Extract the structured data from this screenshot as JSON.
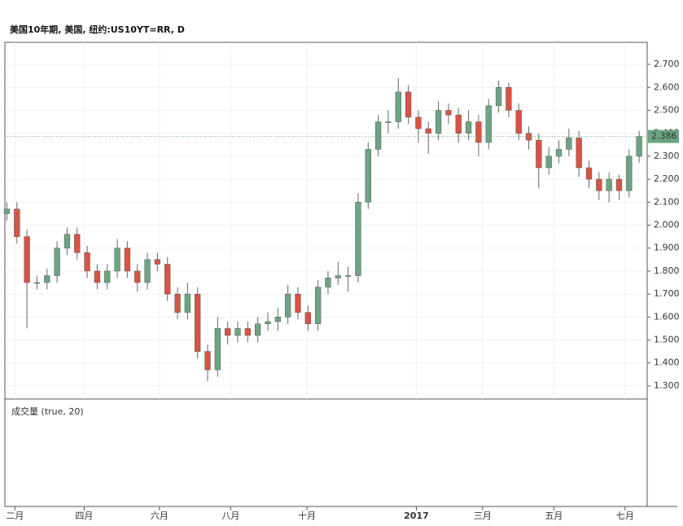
{
  "chart_data": {
    "type": "candlestick",
    "title": "美国10年期, 美国, 纽约:US10YT=RR, D",
    "volume_title": "成交量 (true, 20)",
    "x": [
      0,
      1,
      2,
      3,
      4,
      5,
      6,
      7,
      8,
      9,
      10,
      11,
      12,
      13,
      14,
      15,
      16,
      17,
      18,
      19,
      20,
      21,
      22,
      23,
      24,
      25,
      26,
      27,
      28,
      29,
      30,
      31,
      32,
      33,
      34,
      35,
      36,
      37,
      38,
      39,
      40,
      41,
      42,
      43,
      44,
      45,
      46,
      47,
      48,
      49,
      50,
      51,
      52,
      53,
      54,
      55,
      56,
      57,
      58,
      59,
      60,
      61,
      62,
      63
    ],
    "open": [
      2.05,
      2.07,
      1.95,
      1.75,
      1.75,
      1.78,
      1.9,
      1.96,
      1.88,
      1.8,
      1.75,
      1.8,
      1.9,
      1.8,
      1.75,
      1.85,
      1.83,
      1.7,
      1.62,
      1.7,
      1.45,
      1.37,
      1.55,
      1.52,
      1.55,
      1.52,
      1.57,
      1.58,
      1.6,
      1.7,
      1.62,
      1.57,
      1.73,
      1.77,
      1.78,
      1.78,
      2.1,
      2.33,
      2.45,
      2.45,
      2.58,
      2.47,
      2.42,
      2.4,
      2.5,
      2.48,
      2.4,
      2.45,
      2.36,
      2.52,
      2.6,
      2.5,
      2.4,
      2.37,
      2.25,
      2.3,
      2.33,
      2.38,
      2.25,
      2.2,
      2.15,
      2.2,
      2.15,
      2.3
    ],
    "high": [
      2.1,
      2.1,
      1.98,
      1.78,
      1.81,
      1.93,
      1.99,
      1.99,
      1.91,
      1.83,
      1.83,
      1.94,
      1.93,
      1.83,
      1.88,
      1.88,
      1.86,
      1.73,
      1.75,
      1.73,
      1.48,
      1.6,
      1.58,
      1.58,
      1.58,
      1.6,
      1.62,
      1.64,
      1.74,
      1.73,
      1.65,
      1.76,
      1.8,
      1.84,
      1.82,
      2.14,
      2.36,
      2.48,
      2.5,
      2.64,
      2.61,
      2.5,
      2.45,
      2.54,
      2.53,
      2.51,
      2.5,
      2.48,
      2.55,
      2.63,
      2.62,
      2.53,
      2.43,
      2.4,
      2.34,
      2.37,
      2.42,
      2.41,
      2.28,
      2.23,
      2.23,
      2.22,
      2.33,
      2.41
    ],
    "low": [
      2.02,
      1.92,
      1.55,
      1.72,
      1.72,
      1.75,
      1.87,
      1.85,
      1.77,
      1.72,
      1.72,
      1.77,
      1.77,
      1.71,
      1.72,
      1.8,
      1.67,
      1.59,
      1.59,
      1.42,
      1.32,
      1.34,
      1.48,
      1.49,
      1.49,
      1.49,
      1.54,
      1.54,
      1.57,
      1.59,
      1.54,
      1.54,
      1.7,
      1.74,
      1.71,
      1.75,
      2.07,
      2.3,
      2.4,
      2.42,
      2.44,
      2.36,
      2.31,
      2.37,
      2.44,
      2.36,
      2.37,
      2.3,
      2.33,
      2.49,
      2.47,
      2.37,
      2.33,
      2.16,
      2.22,
      2.27,
      2.3,
      2.21,
      2.16,
      2.11,
      2.1,
      2.11,
      2.12,
      2.27
    ],
    "close": [
      2.07,
      1.95,
      1.75,
      1.75,
      1.78,
      1.9,
      1.96,
      1.88,
      1.8,
      1.75,
      1.8,
      1.9,
      1.8,
      1.75,
      1.85,
      1.83,
      1.7,
      1.62,
      1.7,
      1.45,
      1.37,
      1.55,
      1.52,
      1.55,
      1.52,
      1.57,
      1.58,
      1.6,
      1.7,
      1.62,
      1.57,
      1.73,
      1.77,
      1.78,
      1.78,
      2.1,
      2.33,
      2.45,
      2.45,
      2.58,
      2.47,
      2.42,
      2.4,
      2.5,
      2.48,
      2.4,
      2.45,
      2.36,
      2.52,
      2.6,
      2.5,
      2.4,
      2.37,
      2.25,
      2.3,
      2.33,
      2.38,
      2.25,
      2.2,
      2.15,
      2.2,
      2.15,
      2.3,
      2.386
    ],
    "up_color": "#6ba583",
    "down_color": "#d75442",
    "last_price": 2.386,
    "last_color": "#6ba583",
    "xlim": [
      -0.2,
      63.8
    ],
    "ylim": [
      1.243,
      2.796
    ],
    "xticks": [
      {
        "value": 0.8,
        "label": "二月"
      },
      {
        "value": 7.7,
        "label": "四月"
      },
      {
        "value": 15.2,
        "label": "六月"
      },
      {
        "value": 22.3,
        "label": "八月"
      },
      {
        "value": 29.9,
        "label": "十月"
      },
      {
        "value": 40.8,
        "label": "2017"
      },
      {
        "value": 47.4,
        "label": "三月"
      },
      {
        "value": 54.5,
        "label": "五月"
      },
      {
        "value": 61.6,
        "label": "七月"
      }
    ],
    "yticks": [
      {
        "value": 1.3,
        "label": "1.300"
      },
      {
        "value": 1.4,
        "label": "1.400"
      },
      {
        "value": 1.5,
        "label": "1.500"
      },
      {
        "value": 1.6,
        "label": "1.600"
      },
      {
        "value": 1.7,
        "label": "1.700"
      },
      {
        "value": 1.8,
        "label": "1.800"
      },
      {
        "value": 1.9,
        "label": "1.900"
      },
      {
        "value": 2.0,
        "label": "2.000"
      },
      {
        "value": 2.1,
        "label": "2.100"
      },
      {
        "value": 2.2,
        "label": "2.200"
      },
      {
        "value": 2.3,
        "label": "2.300"
      },
      {
        "value": 2.4,
        "label": "2.400"
      },
      {
        "value": 2.5,
        "label": "2.500"
      },
      {
        "value": 2.6,
        "label": "2.600"
      },
      {
        "value": 2.7,
        "label": "2.700"
      }
    ],
    "grid": true
  }
}
